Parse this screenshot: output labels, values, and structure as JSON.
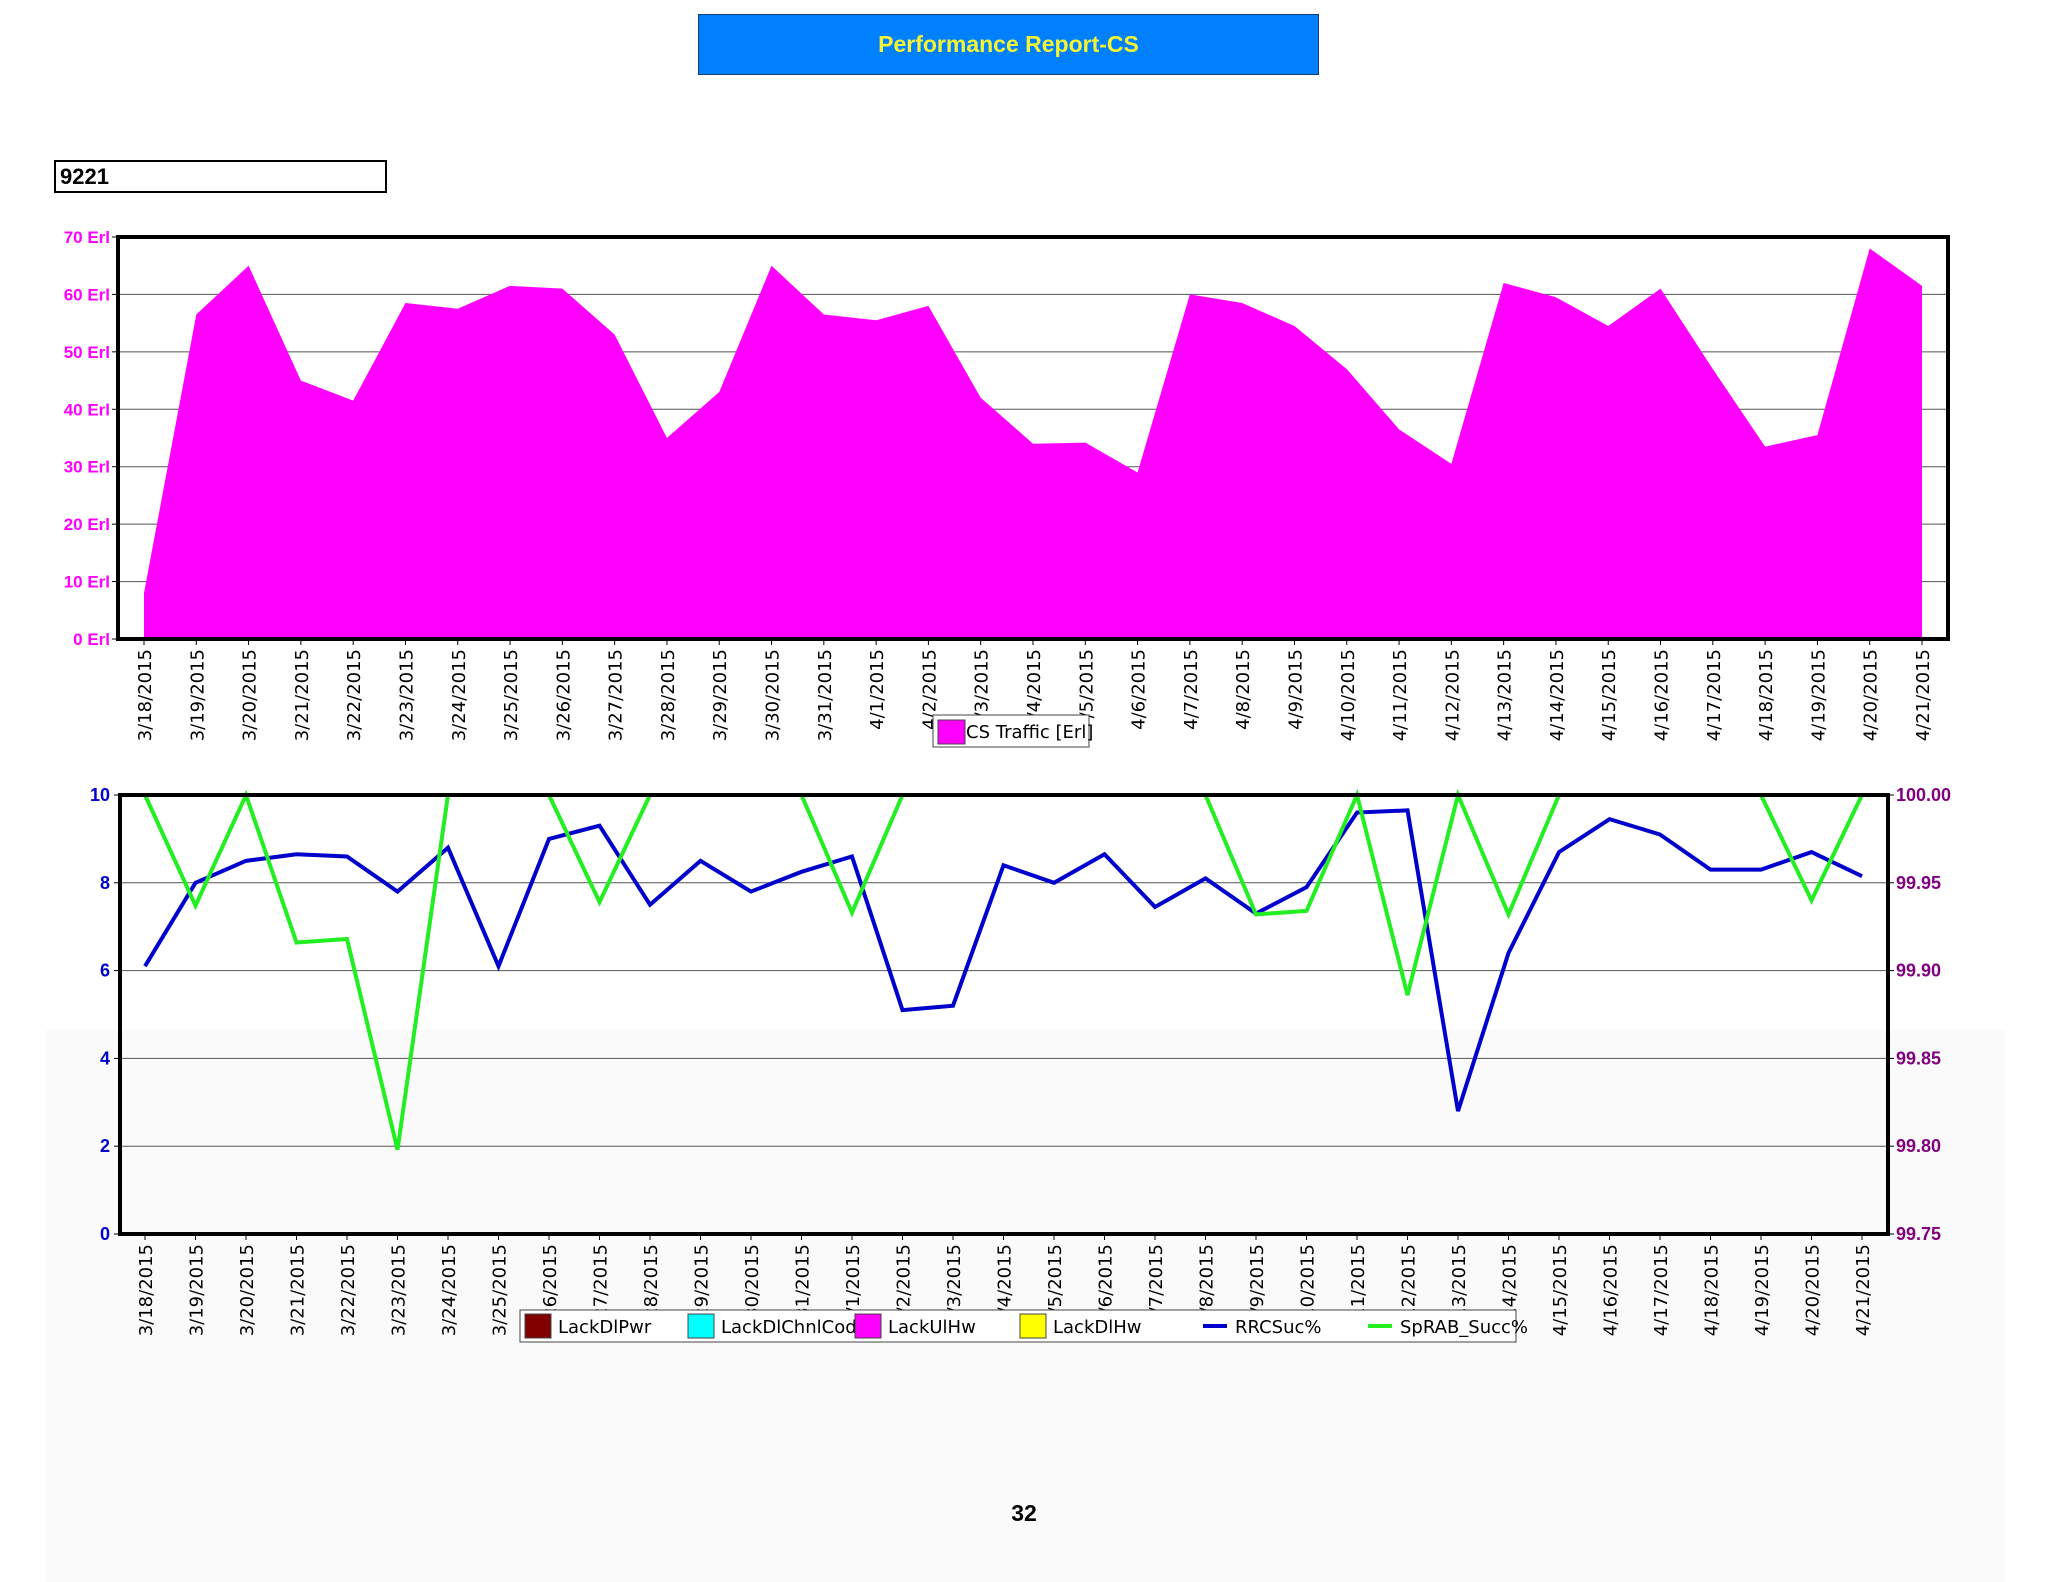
{
  "header": {
    "title": "Performance Report-CS"
  },
  "site": {
    "label": "9221"
  },
  "page": {
    "number": "32"
  },
  "chart_data": [
    {
      "type": "area",
      "title": "",
      "xlabel": "",
      "ylabel": "",
      "ylim": [
        0,
        70
      ],
      "yticks": [
        "0 Erl",
        "10 Erl",
        "20 Erl",
        "30 Erl",
        "40 Erl",
        "50 Erl",
        "60 Erl",
        "70 Erl"
      ],
      "grid": true,
      "legend_position": "bottom-center",
      "colors": {
        "fill": "#ff00ff",
        "axis_text": "#ff00ff"
      },
      "categories": [
        "3/18/2015",
        "3/19/2015",
        "3/20/2015",
        "3/21/2015",
        "3/22/2015",
        "3/23/2015",
        "3/24/2015",
        "3/25/2015",
        "3/26/2015",
        "3/27/2015",
        "3/28/2015",
        "3/29/2015",
        "3/30/2015",
        "3/31/2015",
        "4/1/2015",
        "4/2/2015",
        "4/3/2015",
        "4/4/2015",
        "4/5/2015",
        "4/6/2015",
        "4/7/2015",
        "4/8/2015",
        "4/9/2015",
        "4/10/2015",
        "4/11/2015",
        "4/12/2015",
        "4/13/2015",
        "4/14/2015",
        "4/15/2015",
        "4/16/2015",
        "4/17/2015",
        "4/18/2015",
        "4/19/2015",
        "4/20/2015",
        "4/21/2015"
      ],
      "tick_labels": [
        "3/18/2015",
        "3/19/2015",
        "3/20/2015",
        "3/21/2015",
        "3/22/2015",
        "3/23/2015",
        "3/24/2015",
        "3/25/2015",
        "3/26/2015",
        "3/27/2015",
        "3/28/2015",
        "3/29/2015",
        "3/30/2015",
        "3/31/2015",
        "4/1/2015",
        "4/2/2015",
        "/3/2015",
        "/4/2015",
        "/5/2015",
        "4/6/2015",
        "4/7/2015",
        "4/8/2015",
        "4/9/2015",
        "4/10/2015",
        "4/11/2015",
        "4/12/2015",
        "4/13/2015",
        "4/14/2015",
        "4/15/2015",
        "4/16/2015",
        "4/17/2015",
        "4/18/2015",
        "4/19/2015",
        "4/20/2015",
        "4/21/2015"
      ],
      "series": [
        {
          "name": "CS Traffic [Erl]",
          "color": "#ff00ff",
          "values": [
            8,
            56.5,
            65,
            45,
            41.5,
            58.5,
            57.5,
            61.5,
            61,
            53,
            35,
            43,
            65,
            56.5,
            55.5,
            58,
            42,
            34,
            34.2,
            29,
            60,
            58.5,
            54.5,
            47,
            36.5,
            30.5,
            62,
            59.5,
            54.5,
            61,
            47,
            33.5,
            35.5,
            68,
            61.5
          ]
        }
      ]
    },
    {
      "type": "line",
      "title": "",
      "xlabel": "",
      "ylabel": "",
      "ylim": [
        0,
        10
      ],
      "yticks": [
        "0",
        "2",
        "4",
        "6",
        "8",
        "10"
      ],
      "y2lim": [
        99.75,
        100.0
      ],
      "y2ticks": [
        "99.75",
        "99.80",
        "99.85",
        "99.90",
        "99.95",
        "100.00"
      ],
      "grid": true,
      "legend_position": "bottom-center",
      "colors": {
        "left_axis_text": "#0000cc",
        "right_axis_text": "#800080"
      },
      "categories": [
        "3/18/2015",
        "3/19/2015",
        "3/20/2015",
        "3/21/2015",
        "3/22/2015",
        "3/23/2015",
        "3/24/2015",
        "3/25/2015",
        "3/26/2015",
        "3/27/2015",
        "3/28/2015",
        "3/29/2015",
        "3/30/2015",
        "3/31/2015",
        "4/1/2015",
        "4/2/2015",
        "4/3/2015",
        "4/4/2015",
        "4/5/2015",
        "4/6/2015",
        "4/7/2015",
        "4/8/2015",
        "4/9/2015",
        "4/10/2015",
        "4/11/2015",
        "4/12/2015",
        "4/13/2015",
        "4/14/2015",
        "4/15/2015",
        "4/16/2015",
        "4/17/2015",
        "4/18/2015",
        "4/19/2015",
        "4/20/2015",
        "4/21/2015"
      ],
      "tick_labels": [
        "3/18/2015",
        "3/19/2015",
        "3/20/2015",
        "3/21/2015",
        "3/22/2015",
        "3/23/2015",
        "3/24/2015",
        "3/25/2015",
        "26/2015",
        "27/2015",
        "28/2015",
        "29/2015",
        "30/2015",
        "31/2015",
        "/1/2015",
        "/2/2015",
        "/3/2015",
        "/4/2015",
        "/5/2015",
        "/6/2015",
        "/7/2015",
        "/8/2015",
        "/9/2015",
        "10/2015",
        "11/2015",
        "12/2015",
        "13/2015",
        "14/2015",
        "4/15/2015",
        "4/16/2015",
        "4/17/2015",
        "4/18/2015",
        "4/19/2015",
        "4/20/2015",
        "4/21/2015"
      ],
      "legend": [
        {
          "name": "LackDlPwr",
          "color": "#800000",
          "kind": "box"
        },
        {
          "name": "LackDlChnlCode",
          "color": "#00ffff",
          "kind": "box"
        },
        {
          "name": "LackUlHw",
          "color": "#ff00ff",
          "kind": "box"
        },
        {
          "name": "LackDlHw",
          "color": "#ffff00",
          "kind": "box"
        },
        {
          "name": "RRCSuc%",
          "color": "#0000cc",
          "kind": "line"
        },
        {
          "name": "SpRAB_Succ%",
          "color": "#22ee22",
          "kind": "line"
        }
      ],
      "series": [
        {
          "name": "RRCSuc%",
          "axis": "left",
          "color": "#0000cc",
          "values": [
            6.1,
            8.0,
            8.5,
            8.65,
            8.6,
            7.8,
            8.8,
            6.1,
            9.0,
            9.3,
            7.5,
            8.5,
            7.8,
            8.25,
            8.6,
            5.1,
            5.2,
            8.4,
            8.0,
            8.65,
            7.45,
            8.1,
            7.3,
            7.9,
            9.6,
            9.65,
            2.8,
            6.4,
            8.7,
            9.45,
            9.1,
            8.3,
            8.3,
            8.7,
            8.15
          ]
        },
        {
          "name": "SpRAB_Succ%",
          "axis": "right",
          "color": "#22ee22",
          "values": [
            100.0,
            99.937,
            100.0,
            99.916,
            99.918,
            99.798,
            100.0,
            100.0,
            100.0,
            99.939,
            100.0,
            100.0,
            100.0,
            100.0,
            99.933,
            100.0,
            100.0,
            100.0,
            100.0,
            100.0,
            100.0,
            100.0,
            99.932,
            99.934,
            100.0,
            99.886,
            100.0,
            99.932,
            100.0,
            100.0,
            100.0,
            100.0,
            100.0,
            99.94,
            100.0
          ]
        }
      ]
    }
  ]
}
